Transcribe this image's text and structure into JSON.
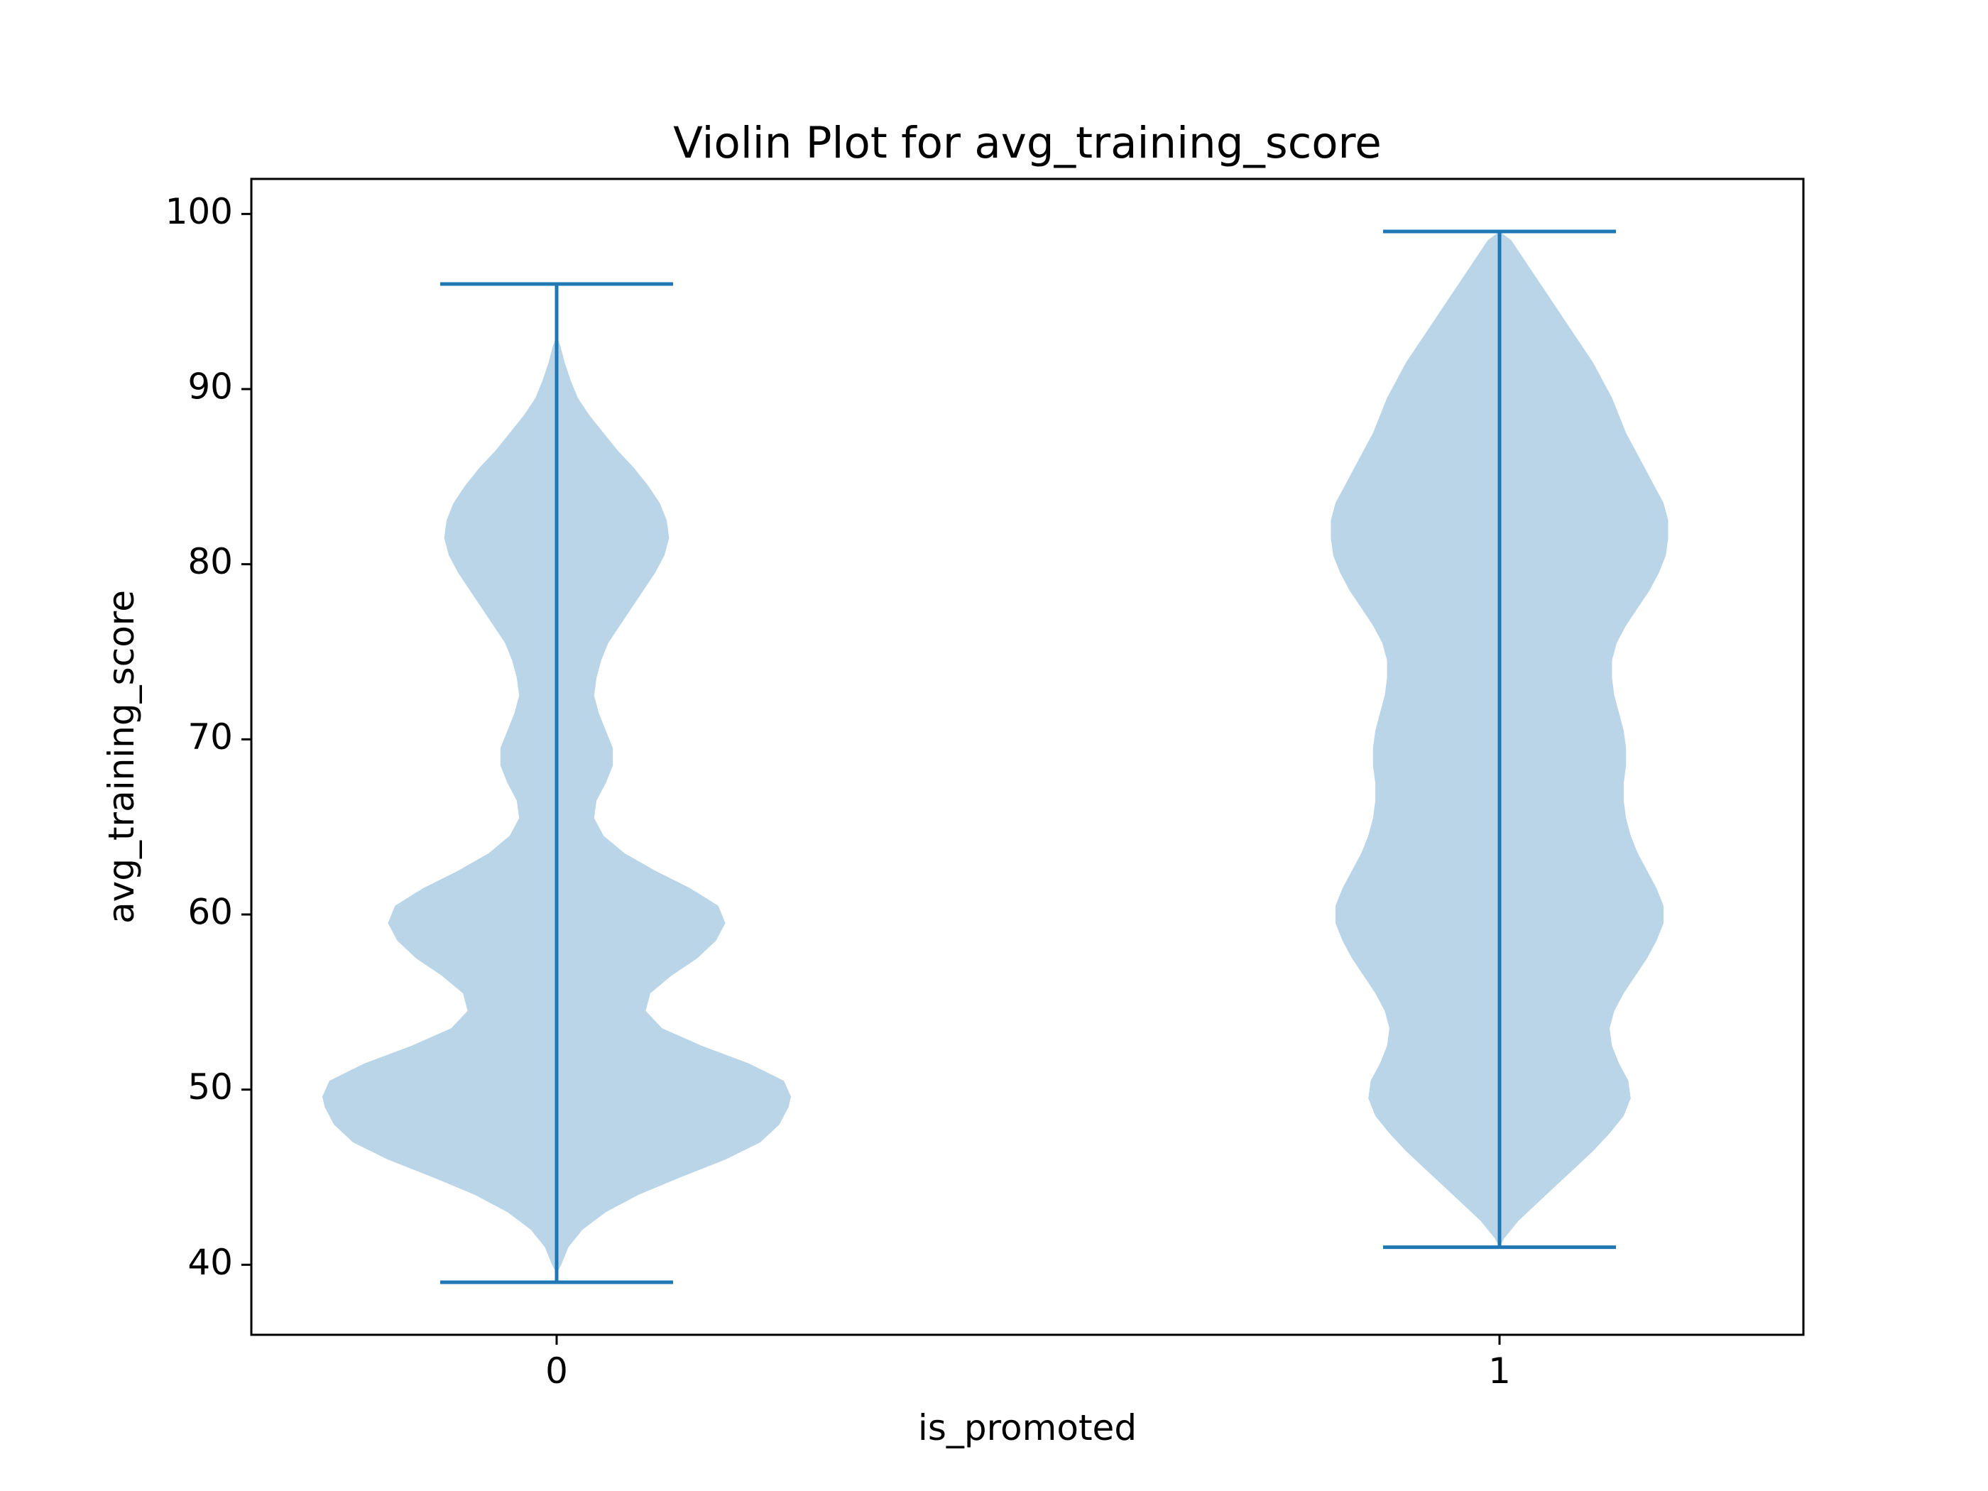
{
  "chart_data": {
    "type": "violin",
    "title": "Violin Plot for avg_training_score",
    "xlabel": "is_promoted",
    "ylabel": "avg_training_score",
    "categories": [
      "0",
      "1"
    ],
    "x_ticks": [
      "0",
      "1"
    ],
    "y_ticks": [
      40,
      50,
      60,
      70,
      80,
      90,
      100
    ],
    "ylim": [
      36,
      102
    ],
    "grid": false,
    "colors": {
      "fill": "#bad5e8",
      "line": "#1f77b4"
    },
    "violins": [
      {
        "category": "0",
        "min": 39,
        "max": 96,
        "density_profile": [
          [
            39.5,
            0.0
          ],
          [
            40.0,
            0.02
          ],
          [
            41.0,
            0.05
          ],
          [
            42.0,
            0.11
          ],
          [
            43.0,
            0.21
          ],
          [
            44.0,
            0.35
          ],
          [
            45.0,
            0.53
          ],
          [
            46.0,
            0.72
          ],
          [
            47.0,
            0.87
          ],
          [
            48.0,
            0.95
          ],
          [
            49.0,
            0.99
          ],
          [
            49.6,
            1.0
          ],
          [
            50.5,
            0.97
          ],
          [
            51.5,
            0.82
          ],
          [
            52.5,
            0.62
          ],
          [
            53.5,
            0.45
          ],
          [
            54.5,
            0.38
          ],
          [
            55.5,
            0.4
          ],
          [
            56.5,
            0.49
          ],
          [
            57.5,
            0.6
          ],
          [
            58.5,
            0.68
          ],
          [
            59.5,
            0.72
          ],
          [
            60.5,
            0.69
          ],
          [
            61.5,
            0.57
          ],
          [
            62.5,
            0.42
          ],
          [
            63.5,
            0.29
          ],
          [
            64.5,
            0.2
          ],
          [
            65.5,
            0.16
          ],
          [
            66.5,
            0.17
          ],
          [
            67.5,
            0.21
          ],
          [
            68.5,
            0.24
          ],
          [
            69.5,
            0.24
          ],
          [
            70.5,
            0.21
          ],
          [
            71.5,
            0.18
          ],
          [
            72.5,
            0.16
          ],
          [
            73.5,
            0.17
          ],
          [
            74.5,
            0.19
          ],
          [
            75.5,
            0.22
          ],
          [
            76.5,
            0.27
          ],
          [
            77.5,
            0.32
          ],
          [
            78.5,
            0.37
          ],
          [
            79.5,
            0.42
          ],
          [
            80.5,
            0.46
          ],
          [
            81.5,
            0.48
          ],
          [
            82.5,
            0.47
          ],
          [
            83.5,
            0.44
          ],
          [
            84.5,
            0.39
          ],
          [
            85.5,
            0.33
          ],
          [
            86.5,
            0.26
          ],
          [
            87.5,
            0.2
          ],
          [
            88.5,
            0.14
          ],
          [
            89.5,
            0.09
          ],
          [
            90.5,
            0.06
          ],
          [
            91.5,
            0.035
          ],
          [
            92.5,
            0.015
          ],
          [
            93.0,
            0.0
          ]
        ]
      },
      {
        "category": "1",
        "min": 41,
        "max": 99,
        "density_profile": [
          [
            41.0,
            0.0
          ],
          [
            41.5,
            0.02
          ],
          [
            42.5,
            0.08
          ],
          [
            43.5,
            0.16
          ],
          [
            44.5,
            0.24
          ],
          [
            45.5,
            0.32
          ],
          [
            46.5,
            0.4
          ],
          [
            47.5,
            0.47
          ],
          [
            48.5,
            0.53
          ],
          [
            49.5,
            0.56
          ],
          [
            50.5,
            0.55
          ],
          [
            51.5,
            0.51
          ],
          [
            52.5,
            0.48
          ],
          [
            53.5,
            0.47
          ],
          [
            54.5,
            0.49
          ],
          [
            55.5,
            0.53
          ],
          [
            56.5,
            0.58
          ],
          [
            57.5,
            0.63
          ],
          [
            58.5,
            0.67
          ],
          [
            59.5,
            0.7
          ],
          [
            60.5,
            0.7
          ],
          [
            61.5,
            0.67
          ],
          [
            62.5,
            0.63
          ],
          [
            63.5,
            0.59
          ],
          [
            64.5,
            0.56
          ],
          [
            65.5,
            0.54
          ],
          [
            66.5,
            0.53
          ],
          [
            67.5,
            0.53
          ],
          [
            68.5,
            0.54
          ],
          [
            69.5,
            0.54
          ],
          [
            70.5,
            0.53
          ],
          [
            71.5,
            0.51
          ],
          [
            72.5,
            0.49
          ],
          [
            73.5,
            0.48
          ],
          [
            74.5,
            0.48
          ],
          [
            75.5,
            0.5
          ],
          [
            76.5,
            0.54
          ],
          [
            77.5,
            0.59
          ],
          [
            78.5,
            0.64
          ],
          [
            79.5,
            0.68
          ],
          [
            80.5,
            0.71
          ],
          [
            81.5,
            0.72
          ],
          [
            82.5,
            0.72
          ],
          [
            83.5,
            0.7
          ],
          [
            84.5,
            0.66
          ],
          [
            85.5,
            0.62
          ],
          [
            86.5,
            0.58
          ],
          [
            87.5,
            0.54
          ],
          [
            88.5,
            0.51
          ],
          [
            89.5,
            0.48
          ],
          [
            90.5,
            0.44
          ],
          [
            91.5,
            0.4
          ],
          [
            92.5,
            0.35
          ],
          [
            93.5,
            0.3
          ],
          [
            94.5,
            0.25
          ],
          [
            95.5,
            0.2
          ],
          [
            96.5,
            0.15
          ],
          [
            97.5,
            0.1
          ],
          [
            98.5,
            0.05
          ],
          [
            99.0,
            0.0
          ]
        ]
      }
    ]
  }
}
